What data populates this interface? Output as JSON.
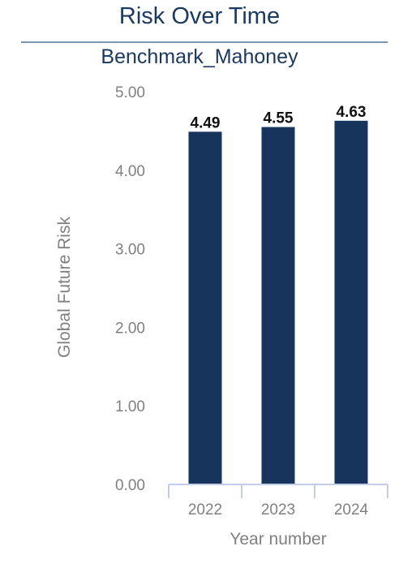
{
  "chart_data": {
    "type": "bar",
    "title": "Risk Over Time",
    "subtitle": "Benchmark_Mahoney",
    "xlabel": "Year number",
    "ylabel": "Global Future Risk",
    "categories": [
      "2022",
      "2023",
      "2024"
    ],
    "values": [
      4.49,
      4.55,
      4.63
    ],
    "data_labels": [
      "4.49",
      "4.55",
      "4.63"
    ],
    "ylim": [
      0,
      5
    ],
    "yticks": [
      0,
      1,
      2,
      3,
      4,
      5
    ],
    "ytick_labels": [
      "0.00",
      "1.00",
      "2.00",
      "3.00",
      "4.00",
      "5.00"
    ],
    "grid": false,
    "legend": "none",
    "colors": {
      "bar": "#16345c",
      "title": "#1c3a60",
      "axis": "#c3cce8",
      "tick_text": "#808080"
    }
  }
}
